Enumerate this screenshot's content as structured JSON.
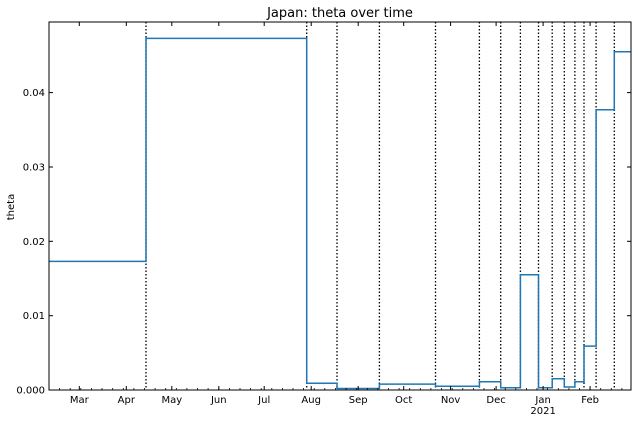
{
  "chart_data": {
    "type": "line",
    "title": "Japan: theta over time",
    "xlabel": "",
    "ylabel": "theta",
    "line_style": "step",
    "grid": false,
    "legend": "none",
    "colors": {
      "series": "#1f77b4",
      "changepoint": "#000000",
      "axes": "#000000"
    },
    "xlim": [
      "2020-02-10",
      "2021-02-28"
    ],
    "ylim": [
      0,
      0.0495
    ],
    "x_ticks": [
      {
        "date": "2020-03-01",
        "label": "Mar"
      },
      {
        "date": "2020-04-01",
        "label": "Apr"
      },
      {
        "date": "2020-05-01",
        "label": "May"
      },
      {
        "date": "2020-06-01",
        "label": "Jun"
      },
      {
        "date": "2020-07-01",
        "label": "Jul"
      },
      {
        "date": "2020-08-01",
        "label": "Aug"
      },
      {
        "date": "2020-09-01",
        "label": "Sep"
      },
      {
        "date": "2020-10-01",
        "label": "Oct"
      },
      {
        "date": "2020-11-01",
        "label": "Nov"
      },
      {
        "date": "2020-12-01",
        "label": "Dec"
      },
      {
        "date": "2021-01-01",
        "label": "Jan"
      },
      {
        "date": "2021-02-01",
        "label": "Feb"
      }
    ],
    "x_year_label": {
      "date": "2021-01-01",
      "label": "2021"
    },
    "y_ticks": [
      {
        "value": 0.0,
        "label": "0.000"
      },
      {
        "value": 0.01,
        "label": "0.01"
      },
      {
        "value": 0.02,
        "label": "0.02"
      },
      {
        "value": 0.03,
        "label": "0.03"
      },
      {
        "value": 0.04,
        "label": "0.04"
      }
    ],
    "changepoints": [
      "2020-04-14",
      "2020-07-29",
      "2020-08-18",
      "2020-09-15",
      "2020-10-22",
      "2020-11-20",
      "2020-12-04",
      "2020-12-17",
      "2020-12-29",
      "2021-01-07",
      "2021-01-15",
      "2021-01-22",
      "2021-01-28",
      "2021-02-05",
      "2021-02-17"
    ],
    "series": [
      {
        "points": [
          {
            "x": "2020-02-10",
            "y": 0.0173
          },
          {
            "x": "2020-04-14",
            "y": 0.0473
          },
          {
            "x": "2020-07-29",
            "y": 0.0009
          },
          {
            "x": "2020-08-18",
            "y": 0.0002
          },
          {
            "x": "2020-09-15",
            "y": 0.0008
          },
          {
            "x": "2020-10-22",
            "y": 0.0005
          },
          {
            "x": "2020-11-20",
            "y": 0.0011
          },
          {
            "x": "2020-12-04",
            "y": 0.0003
          },
          {
            "x": "2020-12-17",
            "y": 0.0155
          },
          {
            "x": "2020-12-29",
            "y": 0.0003
          },
          {
            "x": "2021-01-07",
            "y": 0.0015
          },
          {
            "x": "2021-01-15",
            "y": 0.0004
          },
          {
            "x": "2021-01-22",
            "y": 0.0011
          },
          {
            "x": "2021-01-28",
            "y": 0.0059
          },
          {
            "x": "2021-02-05",
            "y": 0.0377
          },
          {
            "x": "2021-02-17",
            "y": 0.0455
          },
          {
            "x": "2021-02-28",
            "y": 0.0455
          }
        ]
      }
    ]
  }
}
